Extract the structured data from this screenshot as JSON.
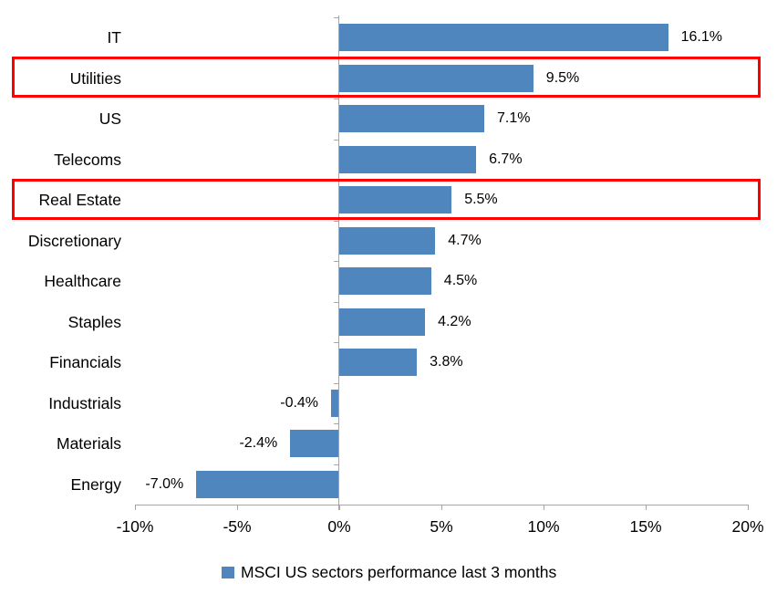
{
  "chart_data": {
    "type": "bar",
    "orientation": "horizontal",
    "title": "",
    "categories": [
      "IT",
      "Utilities",
      "US",
      "Telecoms",
      "Real Estate",
      "Discretionary",
      "Healthcare",
      "Staples",
      "Financials",
      "Industrials",
      "Materials",
      "Energy"
    ],
    "values": [
      16.1,
      9.5,
      7.1,
      6.7,
      5.5,
      4.7,
      4.5,
      4.2,
      3.8,
      -0.4,
      -2.4,
      -7.0
    ],
    "value_labels": [
      "16.1%",
      "9.5%",
      "7.1%",
      "6.7%",
      "5.5%",
      "4.7%",
      "4.5%",
      "4.2%",
      "3.8%",
      "-0.4%",
      "-2.4%",
      "-7.0%"
    ],
    "x_tick_labels": [
      "-10%",
      "-5%",
      "0%",
      "5%",
      "10%",
      "15%",
      "20%"
    ],
    "x_tick_values": [
      -10,
      -5,
      0,
      5,
      10,
      15,
      20
    ],
    "xlim": [
      -10,
      20
    ],
    "grid": false,
    "legend_position": "bottom",
    "legend_label": "MSCI US sectors performance last 3 months",
    "highlighted_categories": [
      "Utilities",
      "Real Estate"
    ],
    "colors": {
      "bar": "#4f86bd",
      "axis": "#a6a6a6",
      "highlight_border": "#ff0000",
      "text": "#000000",
      "background": "#ffffff"
    }
  }
}
